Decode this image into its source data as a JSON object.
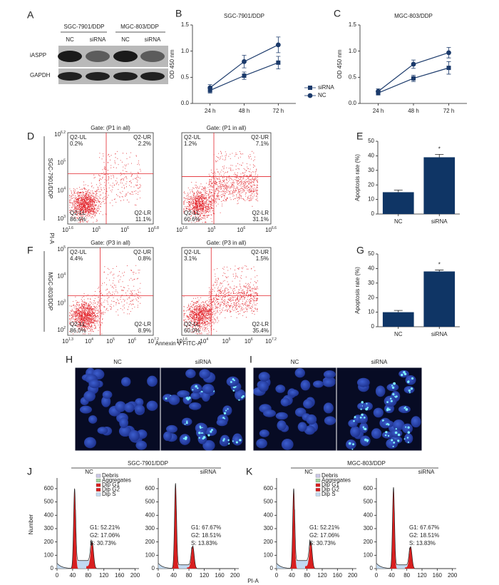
{
  "panel_letters": [
    "A",
    "B",
    "C",
    "D",
    "E",
    "F",
    "G",
    "H",
    "I",
    "J",
    "K"
  ],
  "blot": {
    "cell_lines": [
      "SGC-7901/DDP",
      "MGC-803/DDP"
    ],
    "lanes": [
      "NC",
      "siRNA",
      "NC",
      "siRNA"
    ],
    "rows": [
      "iASPP",
      "GAPDH"
    ]
  },
  "chart_data": [
    {
      "type": "line",
      "title": "SGC-7901/DDP",
      "y_label": "OD 450 nm",
      "categories": [
        "24 h",
        "48 h",
        "72 h"
      ],
      "ylim": [
        0,
        1.5
      ],
      "yticks": [
        {
          "value": 0,
          "label": "0.0"
        },
        0.5,
        {
          "value": 1,
          "label": "1.0"
        },
        {
          "value": 1.5,
          "label": "1.5"
        }
      ],
      "legend": "right",
      "series": [
        {
          "name": "siRNA",
          "color": "#1b3a6b",
          "marker": "square",
          "values": [
            0.25,
            0.53,
            0.78
          ],
          "errors": [
            0.05,
            0.07,
            0.12
          ]
        },
        {
          "name": "NC",
          "color": "#1b3a6b",
          "marker": "circle",
          "values": [
            0.3,
            0.8,
            1.12
          ],
          "errors": [
            0.06,
            0.12,
            0.15
          ]
        }
      ]
    },
    {
      "type": "line",
      "title": "MGC-803/DDP",
      "y_label": "OD 450 nm",
      "categories": [
        "24 h",
        "48 h",
        "72 h"
      ],
      "ylim": [
        0,
        1.5
      ],
      "yticks": [
        {
          "value": 0,
          "label": "0.0"
        },
        0.5,
        {
          "value": 1,
          "label": "1.0"
        },
        {
          "value": 1.5,
          "label": "1.5"
        }
      ],
      "series": [
        {
          "name": "siRNA",
          "color": "#1b3a6b",
          "marker": "square",
          "values": [
            0.2,
            0.48,
            0.68
          ],
          "errors": [
            0.04,
            0.06,
            0.12
          ]
        },
        {
          "name": "NC",
          "color": "#1b3a6b",
          "marker": "circle",
          "values": [
            0.23,
            0.75,
            0.97
          ],
          "errors": [
            0.05,
            0.08,
            0.1
          ]
        }
      ]
    },
    {
      "type": "bar",
      "y_label": "Apoptosis rate (%)",
      "categories": [
        "NC",
        "siRNA"
      ],
      "values": [
        15,
        39
      ],
      "errors": [
        1.5,
        2
      ],
      "color": "#0f3565",
      "annotation": "*",
      "ylim": [
        0,
        50
      ],
      "yticks": [
        0,
        10,
        20,
        30,
        40,
        50
      ]
    },
    {
      "type": "bar",
      "y_label": "Apoptosis rate (%)",
      "categories": [
        "NC",
        "siRNA"
      ],
      "values": [
        10,
        38
      ],
      "errors": [
        1.2,
        1
      ],
      "color": "#0f3565",
      "annotation": "*",
      "ylim": [
        0,
        50
      ],
      "yticks": [
        0,
        10,
        20,
        30,
        40,
        50
      ]
    }
  ],
  "flow": {
    "log_base": "10",
    "ylabel": "PI-A",
    "xlabel": "Annexin V FITC-A",
    "rows": [
      {
        "cell_line": "SGC-7901/DDP",
        "yticks": [
          "6.2",
          "5",
          "4",
          "3"
        ],
        "plots": [
          {
            "gate": "Gate: (P1 in all)",
            "xticks": [
              "1.6",
              "5",
              "6",
              "6.8"
            ],
            "UL": [
              "Q2-UL",
              "0.2%"
            ],
            "UR": [
              "Q2-UR",
              "2.2%"
            ],
            "LL": [
              "Q2-LL",
              "86.4%"
            ],
            "LR": [
              "Q2-LR",
              "11.1%"
            ]
          },
          {
            "gate": "Gate: (P1 in all)",
            "xticks": [
              "1.6",
              "5",
              "6",
              "6.6"
            ],
            "UL": [
              "Q2-UL",
              "1.2%"
            ],
            "UR": [
              "Q2-UR",
              "7.1%"
            ],
            "LL": [
              "Q2-LL",
              "60.6%"
            ],
            "LR": [
              "Q2-LR",
              "31.1%"
            ]
          }
        ]
      },
      {
        "cell_line": "MGC-803/DDP",
        "yticks": [
          "5",
          "4",
          "3",
          "2"
        ],
        "plots": [
          {
            "gate": "Gate: (P3 in all)",
            "xticks": [
              "1.3",
              "4",
              "5",
              "6",
              "7.2"
            ],
            "UL": [
              "Q2-UL",
              "4.4%"
            ],
            "UR": [
              "Q2-UR",
              "0.8%"
            ],
            "LL": [
              "Q2-LL",
              "86.0%"
            ],
            "LR": [
              "Q2-LR",
              "8.9%"
            ]
          },
          {
            "gate": "Gate: (P3 in all)",
            "xticks": [
              "1.6",
              "4",
              "5",
              "6",
              "7.2"
            ],
            "UL": [
              "Q2-UL",
              "3.1%"
            ],
            "UR": [
              "Q2-UR",
              "1.5%"
            ],
            "LL": [
              "Q2-LL",
              "60.0%"
            ],
            "LR": [
              "Q2-LR",
              "35.4%"
            ]
          }
        ]
      }
    ]
  },
  "microscopy": [
    {
      "labels": [
        "NC",
        "siRNA"
      ]
    },
    {
      "labels": [
        "NC",
        "siRNA"
      ]
    }
  ],
  "cell_cycle": {
    "ylabel": "Number",
    "xlabel": "PI-A",
    "ylim": [
      0,
      680
    ],
    "xlim": [
      0,
      210
    ],
    "yticks": [
      0,
      100,
      200,
      300,
      400,
      500,
      600
    ],
    "xticks": [
      0,
      40,
      80,
      120,
      160,
      200
    ],
    "legend": [
      {
        "name": "Debris",
        "color": "#c9c6e6"
      },
      {
        "name": "Aggregates",
        "color": "#9fd49f"
      },
      {
        "name": "Dip G1",
        "color": "#d81f1f"
      },
      {
        "name": "Dip G2",
        "color": "#d81f1f"
      },
      {
        "name": "Dip S",
        "color": "#c2daf2"
      }
    ],
    "panels": [
      {
        "title": "SGC-7901/DDP",
        "groups": [
          {
            "name": "NC",
            "stats": [
              "G1: 52.21%",
              "G2: 17.06%",
              "S: 30.73%"
            ]
          },
          {
            "name": "siRNA",
            "stats": [
              "G1: 67.67%",
              "G2: 18.51%",
              "S: 13.83%"
            ]
          }
        ]
      },
      {
        "title": "MGC-803/DDP",
        "groups": [
          {
            "name": "NC",
            "stats": [
              "G1: 52.21%",
              "G2: 17.06%",
              "S: 30.73%"
            ]
          },
          {
            "name": "siRNA",
            "stats": [
              "G1: 67.67%",
              "G2: 18.51%",
              "S: 13.83%"
            ]
          }
        ]
      }
    ]
  }
}
